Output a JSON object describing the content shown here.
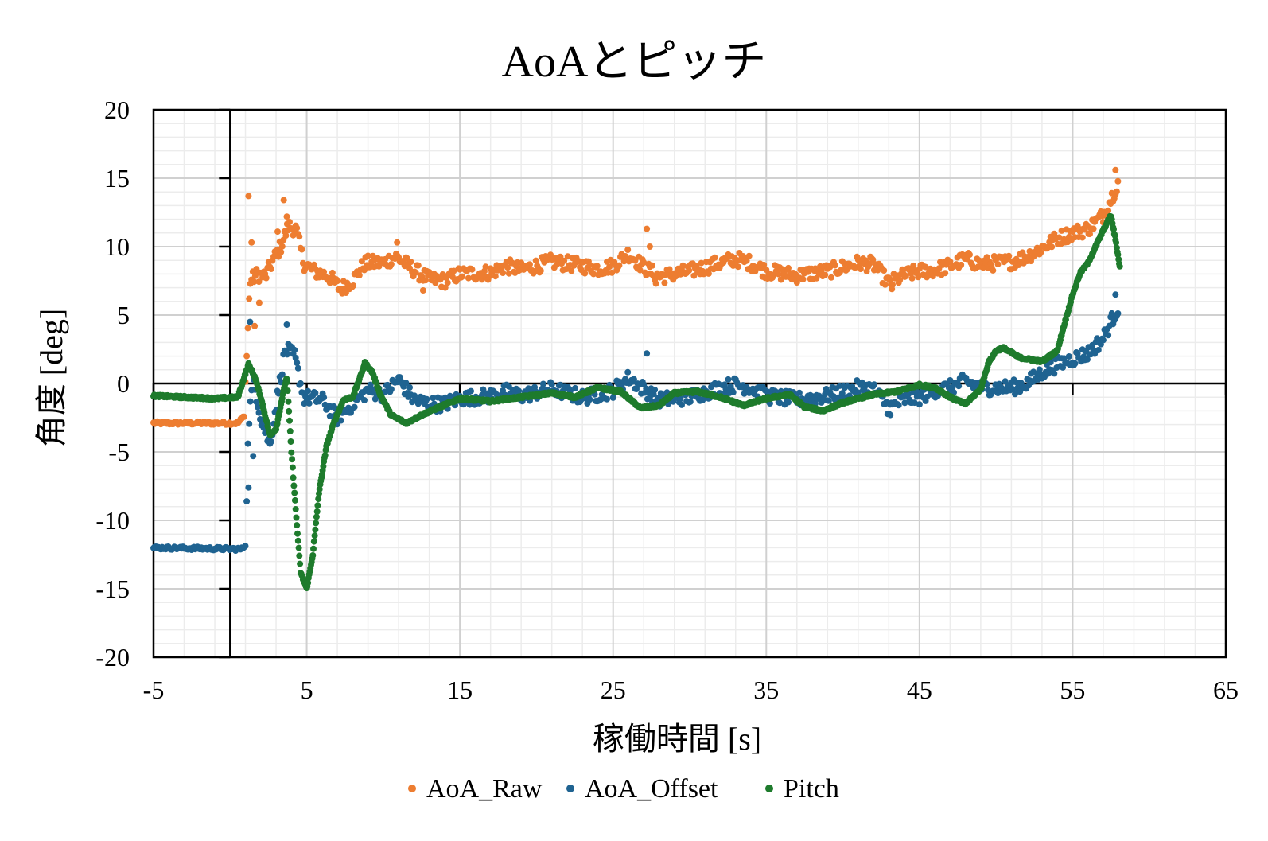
{
  "chart_data": {
    "type": "scatter",
    "title": "AoAとピッチ",
    "xlabel": "稼働時間 [s]",
    "ylabel": "角度 [deg]",
    "xlim": [
      -5,
      65
    ],
    "ylim": [
      -20,
      20
    ],
    "x_ticks": [
      -5,
      5,
      15,
      25,
      35,
      45,
      55,
      65
    ],
    "y_ticks": [
      20,
      15,
      10,
      5,
      0,
      -5,
      -10,
      -15,
      -20
    ],
    "grid": true,
    "minor_grid": true,
    "legend_position": "bottom",
    "series": [
      {
        "name": "AoA_Raw",
        "color": "#ED7D31",
        "anchors": [
          [
            -5,
            -2.9
          ],
          [
            0.5,
            -2.9
          ],
          [
            0.9,
            -2.4
          ],
          [
            1.3,
            7.5
          ],
          [
            1.8,
            8.0
          ],
          [
            2.3,
            7.8
          ],
          [
            2.8,
            9.0
          ],
          [
            3.3,
            10.0
          ],
          [
            3.8,
            11.5
          ],
          [
            4.3,
            11.3
          ],
          [
            4.8,
            8.8
          ],
          [
            5.5,
            8.2
          ],
          [
            6.5,
            7.8
          ],
          [
            7.2,
            6.9
          ],
          [
            8,
            7.5
          ],
          [
            8.8,
            8.8
          ],
          [
            10,
            8.8
          ],
          [
            10.8,
            9.3
          ],
          [
            12,
            8.3
          ],
          [
            13,
            7.6
          ],
          [
            14,
            7.5
          ],
          [
            15,
            8.0
          ],
          [
            17,
            8.1
          ],
          [
            18,
            8.6
          ],
          [
            19,
            8.3
          ],
          [
            21,
            8.9
          ],
          [
            23,
            8.6
          ],
          [
            24,
            8.4
          ],
          [
            25,
            8.6
          ],
          [
            26,
            9.5
          ],
          [
            27,
            8.5
          ],
          [
            28,
            7.8
          ],
          [
            30,
            8.2
          ],
          [
            32,
            8.8
          ],
          [
            33,
            9.1
          ],
          [
            34,
            8.8
          ],
          [
            35,
            8.2
          ],
          [
            37,
            7.9
          ],
          [
            39,
            8.2
          ],
          [
            41,
            8.8
          ],
          [
            42,
            8.7
          ],
          [
            43,
            7.3
          ],
          [
            44,
            7.9
          ],
          [
            45,
            8.2
          ],
          [
            46,
            8.3
          ],
          [
            47,
            8.6
          ],
          [
            48,
            9.1
          ],
          [
            49,
            8.7
          ],
          [
            51,
            8.9
          ],
          [
            52,
            9.3
          ],
          [
            53,
            9.9
          ],
          [
            54,
            10.6
          ],
          [
            55,
            11.0
          ],
          [
            56,
            11.3
          ],
          [
            57,
            12.3
          ],
          [
            57.5,
            13.5
          ],
          [
            58,
            14.8
          ]
        ],
        "outliers": [
          [
            1.2,
            13.7
          ],
          [
            1.4,
            10.3
          ],
          [
            1.6,
            4.2
          ],
          [
            1.9,
            5.9
          ],
          [
            3.5,
            13.4
          ],
          [
            3.7,
            12.2
          ],
          [
            3.1,
            11.1
          ],
          [
            27.2,
            11.3
          ],
          [
            27.4,
            10.0
          ],
          [
            10.9,
            10.3
          ],
          [
            12.6,
            6.8
          ],
          [
            27.8,
            7.3
          ],
          [
            43.2,
            6.9
          ],
          [
            57.8,
            15.6
          ]
        ],
        "jitter": 0.55,
        "step": 0.08
      },
      {
        "name": "AoA_Offset",
        "color": "#1F6391",
        "anchors": [
          [
            -5,
            -12.0
          ],
          [
            0.8,
            -12.1
          ],
          [
            1.0,
            -11.5
          ],
          [
            1.2,
            -3.0
          ],
          [
            1.5,
            0.5
          ],
          [
            2.0,
            -2.5
          ],
          [
            2.6,
            -4.5
          ],
          [
            3.0,
            -1.5
          ],
          [
            3.6,
            2.5
          ],
          [
            4.2,
            2.0
          ],
          [
            4.8,
            -1.0
          ],
          [
            6,
            -1.2
          ],
          [
            7,
            -2.5
          ],
          [
            8,
            -1.5
          ],
          [
            9,
            -0.5
          ],
          [
            10,
            -0.8
          ],
          [
            11,
            0.3
          ],
          [
            12,
            -1.2
          ],
          [
            13,
            -1.5
          ],
          [
            14,
            -1.5
          ],
          [
            15,
            -1.1
          ],
          [
            17,
            -0.9
          ],
          [
            18,
            -0.6
          ],
          [
            19,
            -0.9
          ],
          [
            21,
            -0.4
          ],
          [
            23,
            -1.0
          ],
          [
            24,
            -0.8
          ],
          [
            25,
            -0.5
          ],
          [
            26,
            0.4
          ],
          [
            27,
            -0.4
          ],
          [
            28,
            -1.2
          ],
          [
            30,
            -1.0
          ],
          [
            32,
            -0.3
          ],
          [
            33,
            -0.1
          ],
          [
            34,
            -0.3
          ],
          [
            35,
            -0.9
          ],
          [
            37,
            -1.2
          ],
          [
            39,
            -0.9
          ],
          [
            41,
            -0.3
          ],
          [
            42,
            -0.4
          ],
          [
            43,
            -1.8
          ],
          [
            44,
            -1.2
          ],
          [
            45,
            -1.0
          ],
          [
            46,
            -0.5
          ],
          [
            47,
            -0.3
          ],
          [
            48,
            0.2
          ],
          [
            49,
            -0.3
          ],
          [
            51,
            -0.3
          ],
          [
            52,
            0.0
          ],
          [
            53,
            0.8
          ],
          [
            54,
            1.4
          ],
          [
            55,
            1.8
          ],
          [
            56,
            2.2
          ],
          [
            57,
            3.3
          ],
          [
            57.5,
            4.5
          ],
          [
            58,
            5.6
          ]
        ],
        "outliers": [
          [
            1.3,
            4.5
          ],
          [
            1.2,
            -7.6
          ],
          [
            1.5,
            -5.3
          ],
          [
            3.7,
            4.3
          ],
          [
            27.2,
            2.2
          ],
          [
            43.1,
            -2.3
          ],
          [
            57.8,
            6.5
          ]
        ],
        "jitter": 0.55,
        "step": 0.08
      },
      {
        "name": "Pitch",
        "color": "#1E7B2C",
        "anchors": [
          [
            -5,
            -0.9
          ],
          [
            -3,
            -1.0
          ],
          [
            -1,
            -1.1
          ],
          [
            0.5,
            -1.0
          ],
          [
            1.2,
            1.4
          ],
          [
            1.6,
            0.5
          ],
          [
            2,
            -1.0
          ],
          [
            2.6,
            -3.8
          ],
          [
            3.0,
            -3.3
          ],
          [
            3.5,
            -0.5
          ],
          [
            3.7,
            0.5
          ],
          [
            4.0,
            -5.0
          ],
          [
            4.3,
            -9.5
          ],
          [
            4.6,
            -13.8
          ],
          [
            5.0,
            -15.0
          ],
          [
            5.4,
            -12.5
          ],
          [
            5.8,
            -8.0
          ],
          [
            6.3,
            -4.5
          ],
          [
            6.8,
            -2.8
          ],
          [
            7.4,
            -1.2
          ],
          [
            8.0,
            -1.0
          ],
          [
            8.5,
            0.5
          ],
          [
            8.8,
            1.5
          ],
          [
            9.3,
            0.8
          ],
          [
            9.8,
            -0.8
          ],
          [
            10.5,
            -2.3
          ],
          [
            11.5,
            -2.9
          ],
          [
            12.5,
            -2.3
          ],
          [
            13.5,
            -1.8
          ],
          [
            15,
            -1.1
          ],
          [
            17,
            -1.3
          ],
          [
            19,
            -1.0
          ],
          [
            21,
            -0.7
          ],
          [
            22.5,
            -1.0
          ],
          [
            24,
            -0.3
          ],
          [
            25.5,
            -0.6
          ],
          [
            26.8,
            -1.8
          ],
          [
            28,
            -1.6
          ],
          [
            29,
            -0.7
          ],
          [
            30.5,
            -0.6
          ],
          [
            32,
            -1.0
          ],
          [
            33.5,
            -1.6
          ],
          [
            35,
            -1.1
          ],
          [
            36.5,
            -0.8
          ],
          [
            37.5,
            -1.7
          ],
          [
            38.7,
            -2.0
          ],
          [
            40,
            -1.4
          ],
          [
            42,
            -0.8
          ],
          [
            43.5,
            -0.6
          ],
          [
            45,
            -0.1
          ],
          [
            46,
            -0.3
          ],
          [
            47,
            -1.0
          ],
          [
            48,
            -1.5
          ],
          [
            49,
            -0.4
          ],
          [
            49.5,
            1.5
          ],
          [
            50,
            2.4
          ],
          [
            50.5,
            2.6
          ],
          [
            51.5,
            1.9
          ],
          [
            53,
            1.6
          ],
          [
            54,
            2.4
          ],
          [
            54.5,
            4.5
          ],
          [
            55,
            6.5
          ],
          [
            55.5,
            8.1
          ],
          [
            56,
            8.8
          ],
          [
            57,
            11.2
          ],
          [
            57.5,
            12.3
          ],
          [
            57.8,
            10.5
          ],
          [
            58.1,
            8.4
          ]
        ],
        "outliers": [],
        "jitter": 0.08,
        "step": 0.04
      }
    ]
  }
}
